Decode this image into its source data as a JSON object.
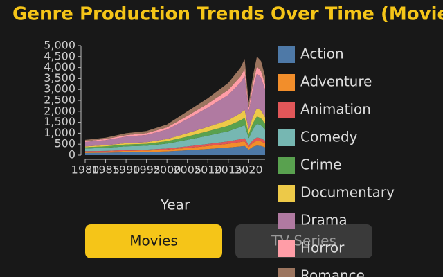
{
  "chart_data": {
    "type": "area",
    "stacked": true,
    "title": "Genre Production Trends Over Time (Movies)",
    "xlabel": "Year",
    "x": [
      1980,
      1985,
      1990,
      1995,
      2000,
      2005,
      2010,
      2015,
      2018,
      2019,
      2020,
      2021,
      2022,
      2023,
      2024
    ],
    "xlim": [
      1980,
      2024
    ],
    "xticks": [
      1980,
      1985,
      1990,
      1995,
      2000,
      2005,
      2010,
      2015,
      2020
    ],
    "ylim": [
      0,
      5000
    ],
    "yticks": [
      0,
      500,
      {
        "value": 1000,
        "label": "1,000"
      },
      {
        "value": 1500,
        "label": "1,500"
      },
      {
        "value": 2000,
        "label": "2,000"
      },
      {
        "value": 2500,
        "label": "2,500"
      },
      {
        "value": 3000,
        "label": "3,000"
      },
      {
        "value": 3500,
        "label": "3,500"
      },
      {
        "value": 4000,
        "label": "4,000"
      },
      {
        "value": 4500,
        "label": "4,500"
      },
      {
        "value": 5000,
        "label": "5,000"
      }
    ],
    "series": [
      {
        "name": "Action",
        "color": "#4e79a7",
        "values": [
          100,
          110,
          130,
          140,
          170,
          220,
          280,
          350,
          400,
          420,
          250,
          380,
          440,
          420,
          360
        ]
      },
      {
        "name": "Adventure",
        "color": "#f28e2b",
        "values": [
          50,
          55,
          65,
          70,
          85,
          110,
          140,
          170,
          200,
          210,
          120,
          180,
          220,
          210,
          180
        ]
      },
      {
        "name": "Animation",
        "color": "#e15759",
        "values": [
          30,
          30,
          40,
          40,
          50,
          70,
          90,
          110,
          130,
          140,
          80,
          120,
          150,
          140,
          120
        ]
      },
      {
        "name": "Comedy",
        "color": "#76b7b2",
        "values": [
          120,
          140,
          170,
          180,
          220,
          300,
          380,
          460,
          560,
          600,
          330,
          500,
          620,
          590,
          500
        ]
      },
      {
        "name": "Crime",
        "color": "#59a14f",
        "values": [
          60,
          70,
          80,
          90,
          110,
          150,
          200,
          250,
          300,
          330,
          180,
          270,
          340,
          320,
          270
        ]
      },
      {
        "name": "Documentary",
        "color": "#edc948",
        "values": [
          40,
          50,
          60,
          70,
          100,
          150,
          200,
          260,
          330,
          370,
          200,
          300,
          380,
          360,
          300
        ]
      },
      {
        "name": "Drama",
        "color": "#b07aa1",
        "values": [
          200,
          230,
          300,
          330,
          430,
          650,
          880,
          1150,
          1400,
          1550,
          840,
          1260,
          1580,
          1510,
          1260
        ]
      },
      {
        "name": "Horror",
        "color": "#ff9da7",
        "values": [
          40,
          50,
          70,
          80,
          100,
          140,
          180,
          230,
          280,
          310,
          170,
          250,
          320,
          300,
          250
        ]
      },
      {
        "name": "Romance",
        "color": "#9c755f",
        "values": [
          60,
          65,
          85,
          100,
          135,
          210,
          250,
          320,
          400,
          470,
          230,
          340,
          450,
          450,
          360
        ]
      }
    ]
  },
  "buttons": [
    "Movies",
    "TV Series"
  ]
}
